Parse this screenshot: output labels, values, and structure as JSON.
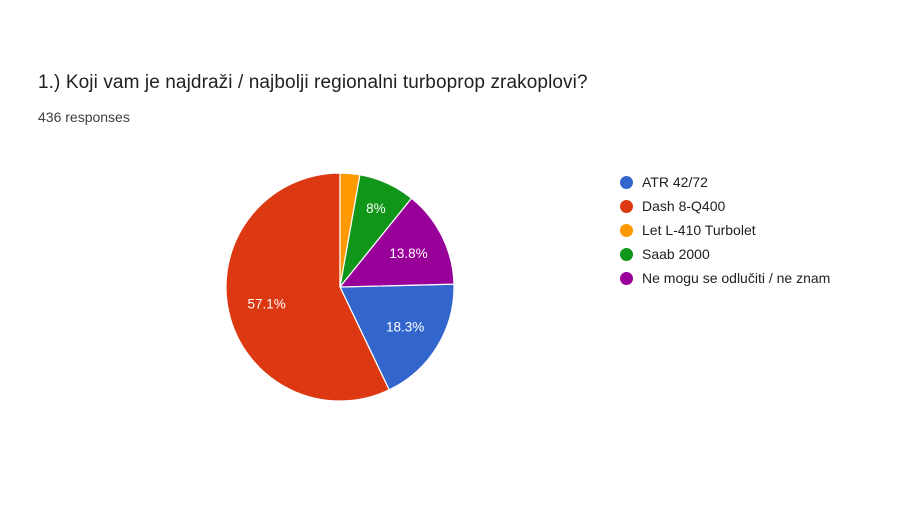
{
  "header": {
    "question_title": "1.) Koji vam je najdraži / najbolji regionalni turboprop zrakoplovi?",
    "responses_count": "436 responses"
  },
  "chart_data": {
    "type": "pie",
    "title": "1.) Koji vam je najdraži / najbolji regionalni turboprop zrakoplovi?",
    "subtitle": "436 responses",
    "total_responses": 436,
    "legend_position": "right",
    "categories": [
      "ATR 42/72",
      "Dash 8-Q400",
      "Let L-410 Turbolet",
      "Saab 2000",
      "Ne mogu se odlučiti / ne znam"
    ],
    "values_pct": [
      18.3,
      57.1,
      2.8,
      8,
      13.8
    ],
    "slice_labels": [
      "18.3%",
      "57.1%",
      "",
      "8%",
      "13.8%"
    ],
    "colors": [
      "#3366cc",
      "#dc3912",
      "#ff9900",
      "#109618",
      "#990099"
    ],
    "start_angle_deg": 88.56,
    "label_radius_pct": [
      67,
      66,
      0,
      76,
      67
    ],
    "slice_border_color": "#ffffff"
  }
}
